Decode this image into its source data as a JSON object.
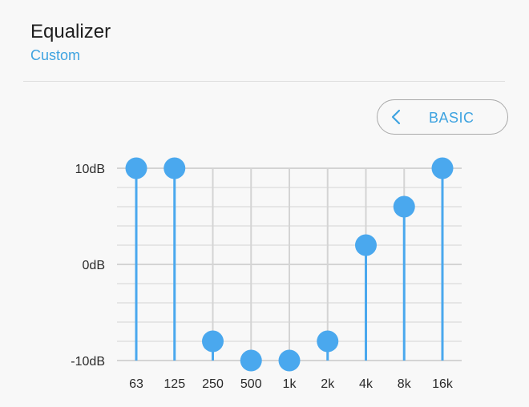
{
  "header": {
    "title": "Equalizer",
    "subtitle": "Custom"
  },
  "mode_button": {
    "label": "BASIC",
    "icon": "chevron-left-icon"
  },
  "colors": {
    "accent": "#4aa8ee",
    "grid": "#d4d4d4",
    "text": "#1e1e1e",
    "subtitle": "#3ea3e0"
  },
  "chart_data": {
    "type": "bar",
    "categories": [
      "63",
      "125",
      "250",
      "500",
      "1k",
      "2k",
      "4k",
      "8k",
      "16k"
    ],
    "values": [
      10,
      10,
      -8,
      -10,
      -10,
      -8,
      2,
      6,
      10
    ],
    "ylim": [
      -10,
      10
    ],
    "yticks": [
      {
        "value": 10,
        "label": "10dB"
      },
      {
        "value": 0,
        "label": "0dB"
      },
      {
        "value": -10,
        "label": "-10dB"
      }
    ],
    "minor_grid_step": 2,
    "grid": true
  }
}
